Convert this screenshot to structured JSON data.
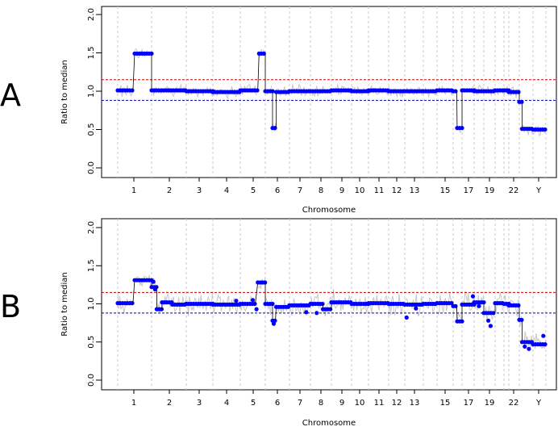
{
  "colors": {
    "segment": "#0000ff",
    "gray_data": "#c8c8c8",
    "upper_threshold": "#cc0000",
    "lower_threshold": "#0000aa",
    "chrom_boundary": "#c8c8c8"
  },
  "chart_data": [
    {
      "panel_label": "A",
      "type": "scatter",
      "xlabel": "Chromosome",
      "ylabel": "Ratio to median",
      "ylim": [
        0.0,
        2.0
      ],
      "y_ticks": [
        "0.0",
        "0.5",
        "1.0",
        "1.5",
        "2.0"
      ],
      "x_tick_labels": [
        "1",
        "2",
        "3",
        "4",
        "5",
        "6",
        "7",
        "8",
        "9",
        "10",
        "11",
        "12",
        "13",
        "15",
        "17",
        "19",
        "22",
        "Y"
      ],
      "chromosomes": [
        "1",
        "2",
        "3",
        "4",
        "5",
        "6",
        "7",
        "8",
        "9",
        "10",
        "11",
        "12",
        "13",
        "14",
        "15",
        "16",
        "17",
        "18",
        "19",
        "20",
        "21",
        "22",
        "X",
        "Y"
      ],
      "thresholds": {
        "upper": 1.15,
        "lower": 0.88
      },
      "grid": false,
      "segments": [
        {
          "chrom": "1",
          "start": 0.0,
          "end": 0.45,
          "value": 1.01
        },
        {
          "chrom": "1",
          "start": 0.5,
          "end": 1.0,
          "value": 1.49
        },
        {
          "chrom": "2",
          "start": 0.0,
          "end": 1.0,
          "value": 1.01
        },
        {
          "chrom": "3",
          "start": 0.0,
          "end": 1.0,
          "value": 1.0
        },
        {
          "chrom": "4",
          "start": 0.0,
          "end": 1.0,
          "value": 0.99
        },
        {
          "chrom": "5",
          "start": 0.0,
          "end": 0.7,
          "value": 1.01
        },
        {
          "chrom": "5",
          "start": 0.75,
          "end": 1.0,
          "value": 1.49
        },
        {
          "chrom": "6",
          "start": 0.0,
          "end": 0.3,
          "value": 1.0
        },
        {
          "chrom": "6",
          "start": 0.3,
          "end": 0.45,
          "value": 0.52
        },
        {
          "chrom": "6",
          "start": 0.45,
          "end": 1.0,
          "value": 0.99
        },
        {
          "chrom": "7",
          "start": 0.0,
          "end": 1.0,
          "value": 1.0
        },
        {
          "chrom": "8",
          "start": 0.0,
          "end": 1.0,
          "value": 1.0
        },
        {
          "chrom": "9",
          "start": 0.0,
          "end": 1.0,
          "value": 1.01
        },
        {
          "chrom": "10",
          "start": 0.0,
          "end": 1.0,
          "value": 1.0
        },
        {
          "chrom": "11",
          "start": 0.0,
          "end": 1.0,
          "value": 1.01
        },
        {
          "chrom": "12",
          "start": 0.0,
          "end": 1.0,
          "value": 1.0
        },
        {
          "chrom": "13",
          "start": 0.0,
          "end": 1.0,
          "value": 1.0
        },
        {
          "chrom": "14",
          "start": 0.0,
          "end": 1.0,
          "value": 1.0
        },
        {
          "chrom": "15",
          "start": 0.0,
          "end": 1.0,
          "value": 1.01
        },
        {
          "chrom": "16",
          "start": 0.0,
          "end": 0.4,
          "value": 1.0
        },
        {
          "chrom": "16",
          "start": 0.45,
          "end": 1.0,
          "value": 0.52
        },
        {
          "chrom": "17",
          "start": 0.0,
          "end": 1.0,
          "value": 1.01
        },
        {
          "chrom": "18",
          "start": 0.0,
          "end": 1.0,
          "value": 1.0
        },
        {
          "chrom": "19",
          "start": 0.0,
          "end": 1.0,
          "value": 1.0
        },
        {
          "chrom": "20",
          "start": 0.0,
          "end": 1.0,
          "value": 1.01
        },
        {
          "chrom": "21",
          "start": 0.0,
          "end": 1.0,
          "value": 1.01
        },
        {
          "chrom": "22",
          "start": 0.0,
          "end": 1.0,
          "value": 0.99
        },
        {
          "chrom": "X",
          "start": 0.0,
          "end": 0.2,
          "value": 0.86
        },
        {
          "chrom": "X",
          "start": 0.2,
          "end": 1.0,
          "value": 0.51
        },
        {
          "chrom": "Y",
          "start": 0.0,
          "end": 1.0,
          "value": 0.5
        }
      ]
    },
    {
      "panel_label": "B",
      "type": "scatter",
      "xlabel": "Chromosome",
      "ylabel": "Ratio to median",
      "ylim": [
        0.0,
        2.0
      ],
      "y_ticks": [
        "0.0",
        "0.5",
        "1.0",
        "1.5",
        "2.0"
      ],
      "x_tick_labels": [
        "1",
        "2",
        "3",
        "4",
        "5",
        "6",
        "7",
        "8",
        "9",
        "10",
        "11",
        "12",
        "13",
        "15",
        "17",
        "19",
        "22",
        "Y"
      ],
      "chromosomes": [
        "1",
        "2",
        "3",
        "4",
        "5",
        "6",
        "7",
        "8",
        "9",
        "10",
        "11",
        "12",
        "13",
        "14",
        "15",
        "16",
        "17",
        "18",
        "19",
        "20",
        "21",
        "22",
        "X",
        "Y"
      ],
      "thresholds": {
        "upper": 1.15,
        "lower": 0.88
      },
      "grid": false,
      "segments": [
        {
          "chrom": "1",
          "start": 0.0,
          "end": 0.45,
          "value": 1.01
        },
        {
          "chrom": "1",
          "start": 0.5,
          "end": 1.0,
          "value": 1.31
        },
        {
          "chrom": "2",
          "start": 0.0,
          "end": 0.15,
          "value": 1.22
        },
        {
          "chrom": "2",
          "start": 0.15,
          "end": 0.3,
          "value": 0.93
        },
        {
          "chrom": "2",
          "start": 0.3,
          "end": 0.6,
          "value": 1.02
        },
        {
          "chrom": "2",
          "start": 0.6,
          "end": 1.0,
          "value": 0.99
        },
        {
          "chrom": "3",
          "start": 0.0,
          "end": 1.0,
          "value": 1.0
        },
        {
          "chrom": "4",
          "start": 0.0,
          "end": 1.0,
          "value": 0.99
        },
        {
          "chrom": "5",
          "start": 0.0,
          "end": 0.6,
          "value": 1.0
        },
        {
          "chrom": "5",
          "start": 0.7,
          "end": 1.0,
          "value": 1.28
        },
        {
          "chrom": "6",
          "start": 0.0,
          "end": 0.3,
          "value": 1.0
        },
        {
          "chrom": "6",
          "start": 0.3,
          "end": 0.42,
          "value": 0.78
        },
        {
          "chrom": "6",
          "start": 0.45,
          "end": 1.0,
          "value": 0.96
        },
        {
          "chrom": "7",
          "start": 0.0,
          "end": 1.0,
          "value": 0.98
        },
        {
          "chrom": "8",
          "start": 0.0,
          "end": 0.6,
          "value": 1.0
        },
        {
          "chrom": "8",
          "start": 0.6,
          "end": 1.0,
          "value": 0.93
        },
        {
          "chrom": "9",
          "start": 0.0,
          "end": 1.0,
          "value": 1.02
        },
        {
          "chrom": "10",
          "start": 0.0,
          "end": 1.0,
          "value": 1.0
        },
        {
          "chrom": "11",
          "start": 0.0,
          "end": 1.0,
          "value": 1.01
        },
        {
          "chrom": "12",
          "start": 0.0,
          "end": 1.0,
          "value": 1.0
        },
        {
          "chrom": "13",
          "start": 0.0,
          "end": 1.0,
          "value": 0.99
        },
        {
          "chrom": "14",
          "start": 0.0,
          "end": 1.0,
          "value": 1.0
        },
        {
          "chrom": "15",
          "start": 0.0,
          "end": 1.0,
          "value": 1.01
        },
        {
          "chrom": "16",
          "start": 0.0,
          "end": 0.4,
          "value": 0.97
        },
        {
          "chrom": "16",
          "start": 0.45,
          "end": 1.0,
          "value": 0.77
        },
        {
          "chrom": "17",
          "start": 0.0,
          "end": 1.0,
          "value": 0.99
        },
        {
          "chrom": "18",
          "start": 0.0,
          "end": 1.0,
          "value": 1.02
        },
        {
          "chrom": "19",
          "start": 0.0,
          "end": 1.0,
          "value": 0.88
        },
        {
          "chrom": "20",
          "start": 0.0,
          "end": 1.0,
          "value": 1.01
        },
        {
          "chrom": "21",
          "start": 0.0,
          "end": 1.0,
          "value": 1.0
        },
        {
          "chrom": "22",
          "start": 0.0,
          "end": 1.0,
          "value": 0.98
        },
        {
          "chrom": "X",
          "start": 0.0,
          "end": 0.2,
          "value": 0.79
        },
        {
          "chrom": "X",
          "start": 0.2,
          "end": 1.0,
          "value": 0.5
        },
        {
          "chrom": "Y",
          "start": 0.0,
          "end": 1.0,
          "value": 0.47
        }
      ],
      "points": [
        {
          "chrom": "2",
          "pos": 0.05,
          "value": 1.29
        },
        {
          "chrom": "2",
          "pos": 0.1,
          "value": 1.19
        },
        {
          "chrom": "4",
          "pos": 0.85,
          "value": 1.04
        },
        {
          "chrom": "5",
          "pos": 0.5,
          "value": 1.05
        },
        {
          "chrom": "5",
          "pos": 0.65,
          "value": 0.93
        },
        {
          "chrom": "6",
          "pos": 0.35,
          "value": 0.74
        },
        {
          "chrom": "7",
          "pos": 0.8,
          "value": 0.89
        },
        {
          "chrom": "8",
          "pos": 0.3,
          "value": 0.88
        },
        {
          "chrom": "13",
          "pos": 0.1,
          "value": 0.82
        },
        {
          "chrom": "13",
          "pos": 0.6,
          "value": 0.94
        },
        {
          "chrom": "17",
          "pos": 0.9,
          "value": 1.1
        },
        {
          "chrom": "18",
          "pos": 0.5,
          "value": 0.97
        },
        {
          "chrom": "19",
          "pos": 0.4,
          "value": 0.78
        },
        {
          "chrom": "19",
          "pos": 0.6,
          "value": 0.71
        },
        {
          "chrom": "X",
          "pos": 0.4,
          "value": 0.44
        },
        {
          "chrom": "X",
          "pos": 0.7,
          "value": 0.41
        },
        {
          "chrom": "Y",
          "pos": 0.8,
          "value": 0.58
        }
      ]
    }
  ]
}
